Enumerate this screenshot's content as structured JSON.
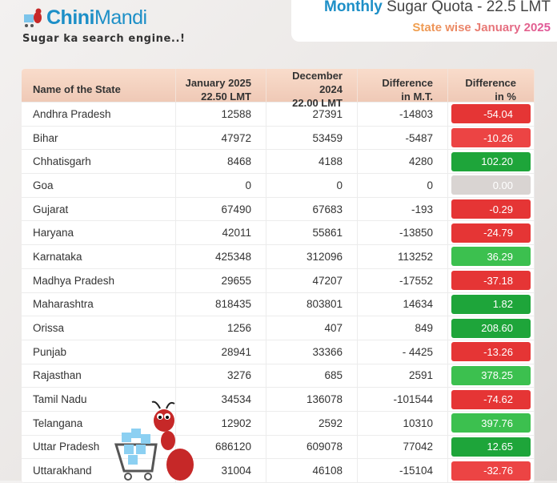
{
  "logo": {
    "brand_bold": "Chini",
    "brand_rest": "Mandi",
    "tagline": "Sugar ka search engine..!"
  },
  "title": {
    "highlight": "Monthly",
    "rest": " Sugar Quota - 22.5 LMT",
    "subtitle": "State wise January 2025"
  },
  "table": {
    "headers": {
      "state": "Name of the State",
      "jan": [
        "January 2025",
        "22.50 LMT"
      ],
      "dec": [
        "December 2024",
        "22.00 LMT"
      ],
      "diff": [
        "Difference",
        "in M.T."
      ],
      "pct": [
        "Difference",
        "in %"
      ]
    },
    "rows": [
      {
        "state": "Andhra Pradesh",
        "jan": "12588",
        "dec": "27391",
        "diff": "-14803",
        "pct": "-54.04",
        "color": "#e53535"
      },
      {
        "state": "Bihar",
        "jan": "47972",
        "dec": "53459",
        "diff": "-5487",
        "pct": "-10.26",
        "color": "#ec4444"
      },
      {
        "state": "Chhatisgarh",
        "jan": "8468",
        "dec": "4188",
        "diff": "4280",
        "pct": "102.20",
        "color": "#1ea53a"
      },
      {
        "state": "Goa",
        "jan": "0",
        "dec": "0",
        "diff": "0",
        "pct": "0.00",
        "color": "#d9d4d2"
      },
      {
        "state": "Gujarat",
        "jan": "67490",
        "dec": "67683",
        "diff": "-193",
        "pct": "-0.29",
        "color": "#e53535"
      },
      {
        "state": "Haryana",
        "jan": "42011",
        "dec": "55861",
        "diff": "-13850",
        "pct": "-24.79",
        "color": "#e53535"
      },
      {
        "state": "Karnataka",
        "jan": "425348",
        "dec": "312096",
        "diff": "113252",
        "pct": "36.29",
        "color": "#3cc04f"
      },
      {
        "state": "Madhya Pradesh",
        "jan": "29655",
        "dec": "47207",
        "diff": "-17552",
        "pct": "-37.18",
        "color": "#e53535"
      },
      {
        "state": "Maharashtra",
        "jan": "818435",
        "dec": "803801",
        "diff": "14634",
        "pct": "1.82",
        "color": "#1ea53a"
      },
      {
        "state": "Orissa",
        "jan": "1256",
        "dec": "407",
        "diff": "849",
        "pct": "208.60",
        "color": "#1ea53a"
      },
      {
        "state": "Punjab",
        "jan": "28941",
        "dec": "33366",
        "diff": "- 4425",
        "pct": "-13.26",
        "color": "#e53535"
      },
      {
        "state": "Rajasthan",
        "jan": "3276",
        "dec": "685",
        "diff": "2591",
        "pct": "378.25",
        "color": "#3cc04f"
      },
      {
        "state": "Tamil Nadu",
        "jan": "34534",
        "dec": "136078",
        "diff": "-101544",
        "pct": "-74.62",
        "color": "#e53535"
      },
      {
        "state": "Telangana",
        "jan": "12902",
        "dec": "2592",
        "diff": "10310",
        "pct": "397.76",
        "color": "#3cc04f"
      },
      {
        "state": "Uttar Pradesh",
        "jan": "686120",
        "dec": "609078",
        "diff": "77042",
        "pct": "12.65",
        "color": "#1ea53a"
      },
      {
        "state": "Uttarakhand",
        "jan": "31004",
        "dec": "46108",
        "diff": "-15104",
        "pct": "-32.76",
        "color": "#ec4444"
      }
    ]
  }
}
